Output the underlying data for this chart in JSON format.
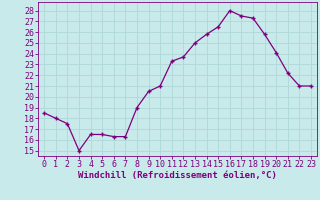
{
  "hours": [
    0,
    1,
    2,
    3,
    4,
    5,
    6,
    7,
    8,
    9,
    10,
    11,
    12,
    13,
    14,
    15,
    16,
    17,
    18,
    19,
    20,
    21,
    22,
    23
  ],
  "values": [
    18.5,
    18.0,
    17.5,
    15.0,
    16.5,
    16.5,
    16.3,
    16.3,
    19.0,
    20.5,
    21.0,
    23.3,
    23.7,
    25.0,
    25.8,
    26.5,
    28.0,
    27.5,
    27.3,
    25.8,
    24.1,
    22.2,
    21.0,
    21.0
  ],
  "line_color": "#7f007f",
  "marker": "+",
  "bg_color": "#c8eaea",
  "grid_color": "#b0d8d8",
  "xlabel": "Windchill (Refroidissement éolien,°C)",
  "ylabel_ticks": [
    15,
    16,
    17,
    18,
    19,
    20,
    21,
    22,
    23,
    24,
    25,
    26,
    27,
    28
  ],
  "ylim": [
    14.5,
    28.8
  ],
  "xlim": [
    -0.5,
    23.5
  ],
  "xlabel_fontsize": 6.5,
  "tick_fontsize": 6.0
}
